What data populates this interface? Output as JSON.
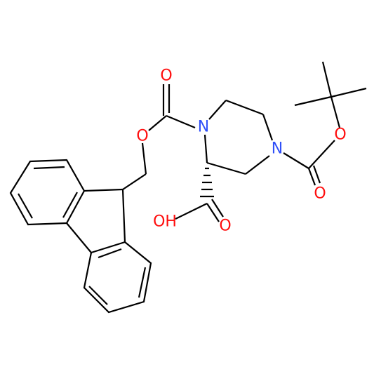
{
  "atoms": [
    {
      "label": "O"
    },
    {
      "label": "O"
    },
    {
      "label": "N"
    },
    {
      "label": "N"
    },
    {
      "label": "O"
    },
    {
      "label": "O"
    },
    {
      "label": "OH"
    },
    {
      "label": "O"
    }
  ]
}
